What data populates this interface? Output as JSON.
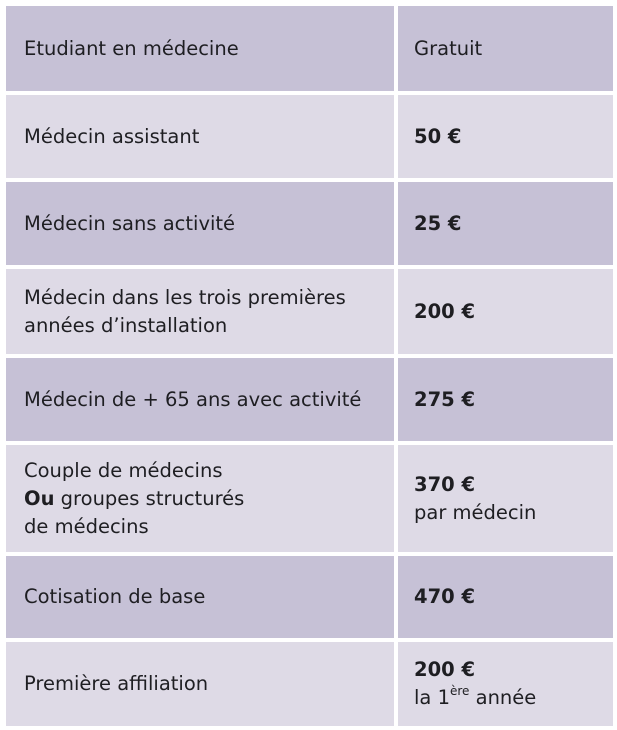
{
  "rows": [
    {
      "category": [
        "Etudiant en médecine"
      ],
      "price": "Gratuit",
      "price_bold": false,
      "note": ""
    },
    {
      "category": [
        "Médecin assistant"
      ],
      "price": "50 €",
      "price_bold": true,
      "note": ""
    },
    {
      "category": [
        "Médecin sans activité"
      ],
      "price": "25 €",
      "price_bold": true,
      "note": ""
    },
    {
      "category": [
        "Médecin dans les trois premières",
        "années d’installation"
      ],
      "price": "200 €",
      "price_bold": true,
      "note": ""
    },
    {
      "category": [
        "Médecin de + 65 ans avec activité"
      ],
      "price": "275 €",
      "price_bold": true,
      "note": ""
    },
    {
      "category": [
        "Couple de médecins",
        "Ou",
        " groupes structurés",
        "de médecins"
      ],
      "price": "370 €",
      "price_bold": true,
      "note": "par médecin"
    },
    {
      "category": [
        "Cotisation de base"
      ],
      "price": "470 €",
      "price_bold": true,
      "note": ""
    },
    {
      "category": [
        "Première affiliation"
      ],
      "price": "200 €",
      "price_bold": true,
      "note_prefix": "la 1",
      "note_sup": "ère",
      "note_suffix": " année"
    }
  ]
}
